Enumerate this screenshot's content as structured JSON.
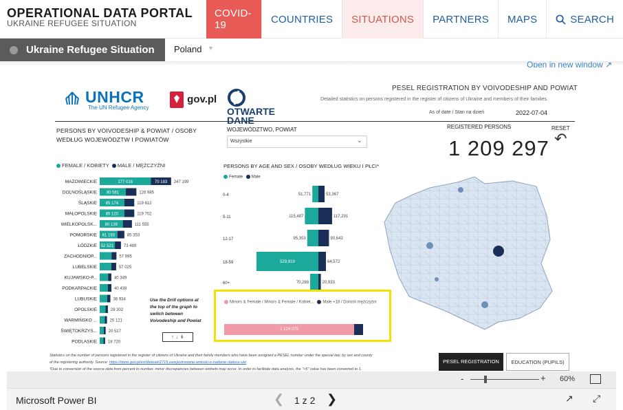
{
  "header": {
    "title": "OPERATIONAL DATA PORTAL",
    "subtitle": "UKRAINE REFUGEE SITUATION",
    "nav": [
      "COVID-19",
      "COUNTRIES",
      "SITUATIONS",
      "PARTNERS",
      "MAPS",
      "SEARCH"
    ]
  },
  "breadcrumb": {
    "situation": "Ukraine Refugee Situation",
    "country": "Poland"
  },
  "open_window": "Open in new window",
  "report": {
    "logos": {
      "unhcr": "UNHCR",
      "unhcr_tag": "The UN Refugee Agency",
      "gov": "gov.pl",
      "otwarte": "OTWARTE",
      "dane": "DANE"
    },
    "title": "PESEL REGISTRATION BY VOIVODESHIP AND POWIAT",
    "description": "Detailed statistics on persons registered in the register of citizens of Ukraine and members of their families.",
    "asof_label": "As of date / Stan na dzień",
    "asof_value": "2022-07-04",
    "section1_title_a": "PERSONS BY VOIVODESHIP & POWIAT / OSOBY",
    "section1_title_b": "WEDŁUG WOJEWÓDZTW I POWIATÓW",
    "woj_label": "WOJEWÓDZTWO, POWIAT",
    "woj_value": "Wszystkie",
    "registered_label": "REGISTERED PERSONS",
    "registered_value": "1 209 297",
    "reset": "RESET",
    "legend_female": "FEMALE / KOBIETY",
    "legend_male": "MALE / MĘŻCZYŹNI",
    "section2_title": "PERSONS BY AGE AND SEX / OSOBY WEDŁUG WIEKU I PŁCI*",
    "legend2_female": "Female",
    "legend2_male": "Male",
    "drill_note": "Use the Drill options at the top of the graph to switch between Voivodeship and Powiat",
    "mini_legend_a": "Minors & Female / Minors & Female / Kobiet...",
    "mini_legend_b": "Male +18 / Dorośli mężczyźni",
    "mini_value": "1 124 075",
    "footnote_a": "Statistics on the number of persons registered in the register of citizens of Ukraine and their family members who have been assigned a PESEL number under the special law, by sex and county",
    "footnote_b": "of the registering authority. Source:",
    "footnote_link": "https://dane.gov.pl/en/dataset/2715,zarejestrowane-wnioski-o-nadanie-statusu-ukr",
    "footnote_c": "*Due to conversion of the source data from percent to number, minor discrepancies between widnets may occur. In order to facilitate data analysis, the \"<5\" value has been converted to 1.",
    "btn_pesel": "PESEL REGISTRATION",
    "btn_edu": "EDUCATION (PUPILS)"
  },
  "chart_data": [
    {
      "type": "bar",
      "orientation": "horizontal",
      "stacked": true,
      "categories": [
        "MAZOWIECKIE",
        "DOLNOŚLĄSKIE",
        "ŚLĄSKIE",
        "MAŁOPOLSKIE",
        "WIELKOPOLSK...",
        "POMORSKIE",
        "ŁÓDZKIE",
        "ZACHODNIOP...",
        "LUBELSKIE",
        "KUJAWSKO-P...",
        "PODKARPACKIE",
        "LUBUSKIE",
        "OPOLSKIE",
        "WARMIŃSKO ...",
        "ŚWIĘTOKRZYS...",
        "PODLASKIE"
      ],
      "series": [
        {
          "name": "FEMALE / KOBIETY",
          "values": [
            177016,
            90581,
            85174,
            85120,
            80139,
            61193,
            52521,
            41000,
            40000,
            29000,
            28000,
            26000,
            20000,
            17500,
            14000,
            13000
          ],
          "labels": [
            "177 016",
            "90 581",
            "85 174",
            "85 120",
            "80 139",
            "61 193",
            "52 521",
            "",
            "",
            "",
            "",
            "",
            "",
            "",
            "",
            ""
          ]
        },
        {
          "name": "MALE / MĘŻCZYŹNI",
          "values": [
            70183,
            36404,
            34438,
            34582,
            31416,
            24160,
            20968,
            16995,
            17025,
            11349,
            12439,
            10934,
            8302,
            7621,
            6517,
            5720
          ],
          "labels": [
            "70 183",
            "",
            "",
            "",
            "",
            "",
            "",
            "",
            "",
            "",
            "",
            "",
            "",
            "",
            "",
            ""
          ]
        }
      ],
      "totals": [
        "247 199",
        "126 985",
        "119 612",
        "119 702",
        "111 555",
        "85 353",
        "73 489",
        "57 995",
        "57 025",
        "40 349",
        "40 439",
        "36 934",
        "28 302",
        "25 121",
        "20 517",
        "18 720"
      ]
    },
    {
      "type": "bar",
      "orientation": "horizontal",
      "diverging": true,
      "title": "PERSONS BY AGE AND SEX / OSOBY WEDŁUG WIEKU I PŁCI*",
      "categories": [
        "0-4",
        "5-11",
        "12-17",
        "18-59",
        "60+"
      ],
      "series": [
        {
          "name": "Female",
          "values": [
            51771,
            115487,
            95353,
            529919,
            70288
          ],
          "labels": [
            "51,771",
            "115,487",
            "95,353",
            "529,919",
            "70,288"
          ]
        },
        {
          "name": "Male",
          "values": [
            53367,
            117291,
            90643,
            64572,
            20933
          ],
          "labels": [
            "53,367",
            "117,291",
            "90,643",
            "64,572",
            "20,933"
          ]
        }
      ]
    }
  ],
  "zoom": {
    "minus": "-",
    "plus": "+",
    "value": "60%"
  },
  "bottom": {
    "app": "Microsoft Power BI",
    "page": "1 z 2"
  },
  "colors": {
    "female": "#1aa99a",
    "male": "#1a2f57",
    "accent": "#e85a55",
    "highlight": "#f3e200",
    "mini_female": "#f19aa8"
  }
}
